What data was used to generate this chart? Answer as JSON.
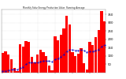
{
  "title": "Monthly Solar Energy Production Value  Running Average",
  "bar_values": [
    120,
    130,
    110,
    80,
    30,
    10,
    170,
    155,
    190,
    185,
    95,
    60,
    110,
    140,
    125,
    100,
    45,
    15,
    220,
    195,
    230,
    265,
    340,
    290,
    125,
    100,
    115,
    145,
    55,
    20,
    185,
    165,
    215,
    255,
    370,
    310
  ],
  "avg_values": [
    10,
    10,
    15,
    20,
    20,
    18,
    30,
    35,
    50,
    60,
    62,
    60,
    62,
    68,
    70,
    72,
    70,
    65,
    80,
    85,
    95,
    110,
    130,
    138,
    138,
    135,
    135,
    138,
    132,
    125,
    128,
    128,
    132,
    140,
    158,
    165
  ],
  "bar_color": "#ff0000",
  "avg_color": "#0000cc",
  "bg_color": "#ffffff",
  "plot_bg": "#ffffff",
  "grid_color": "#cccccc",
  "ylim": [
    0,
    380
  ],
  "ytick_values": [
    50,
    100,
    150,
    200,
    250,
    300,
    350
  ],
  "ytick_labels": [
    "50",
    "100",
    "150",
    "200",
    "250",
    "300",
    "350"
  ],
  "n_bars": 36
}
